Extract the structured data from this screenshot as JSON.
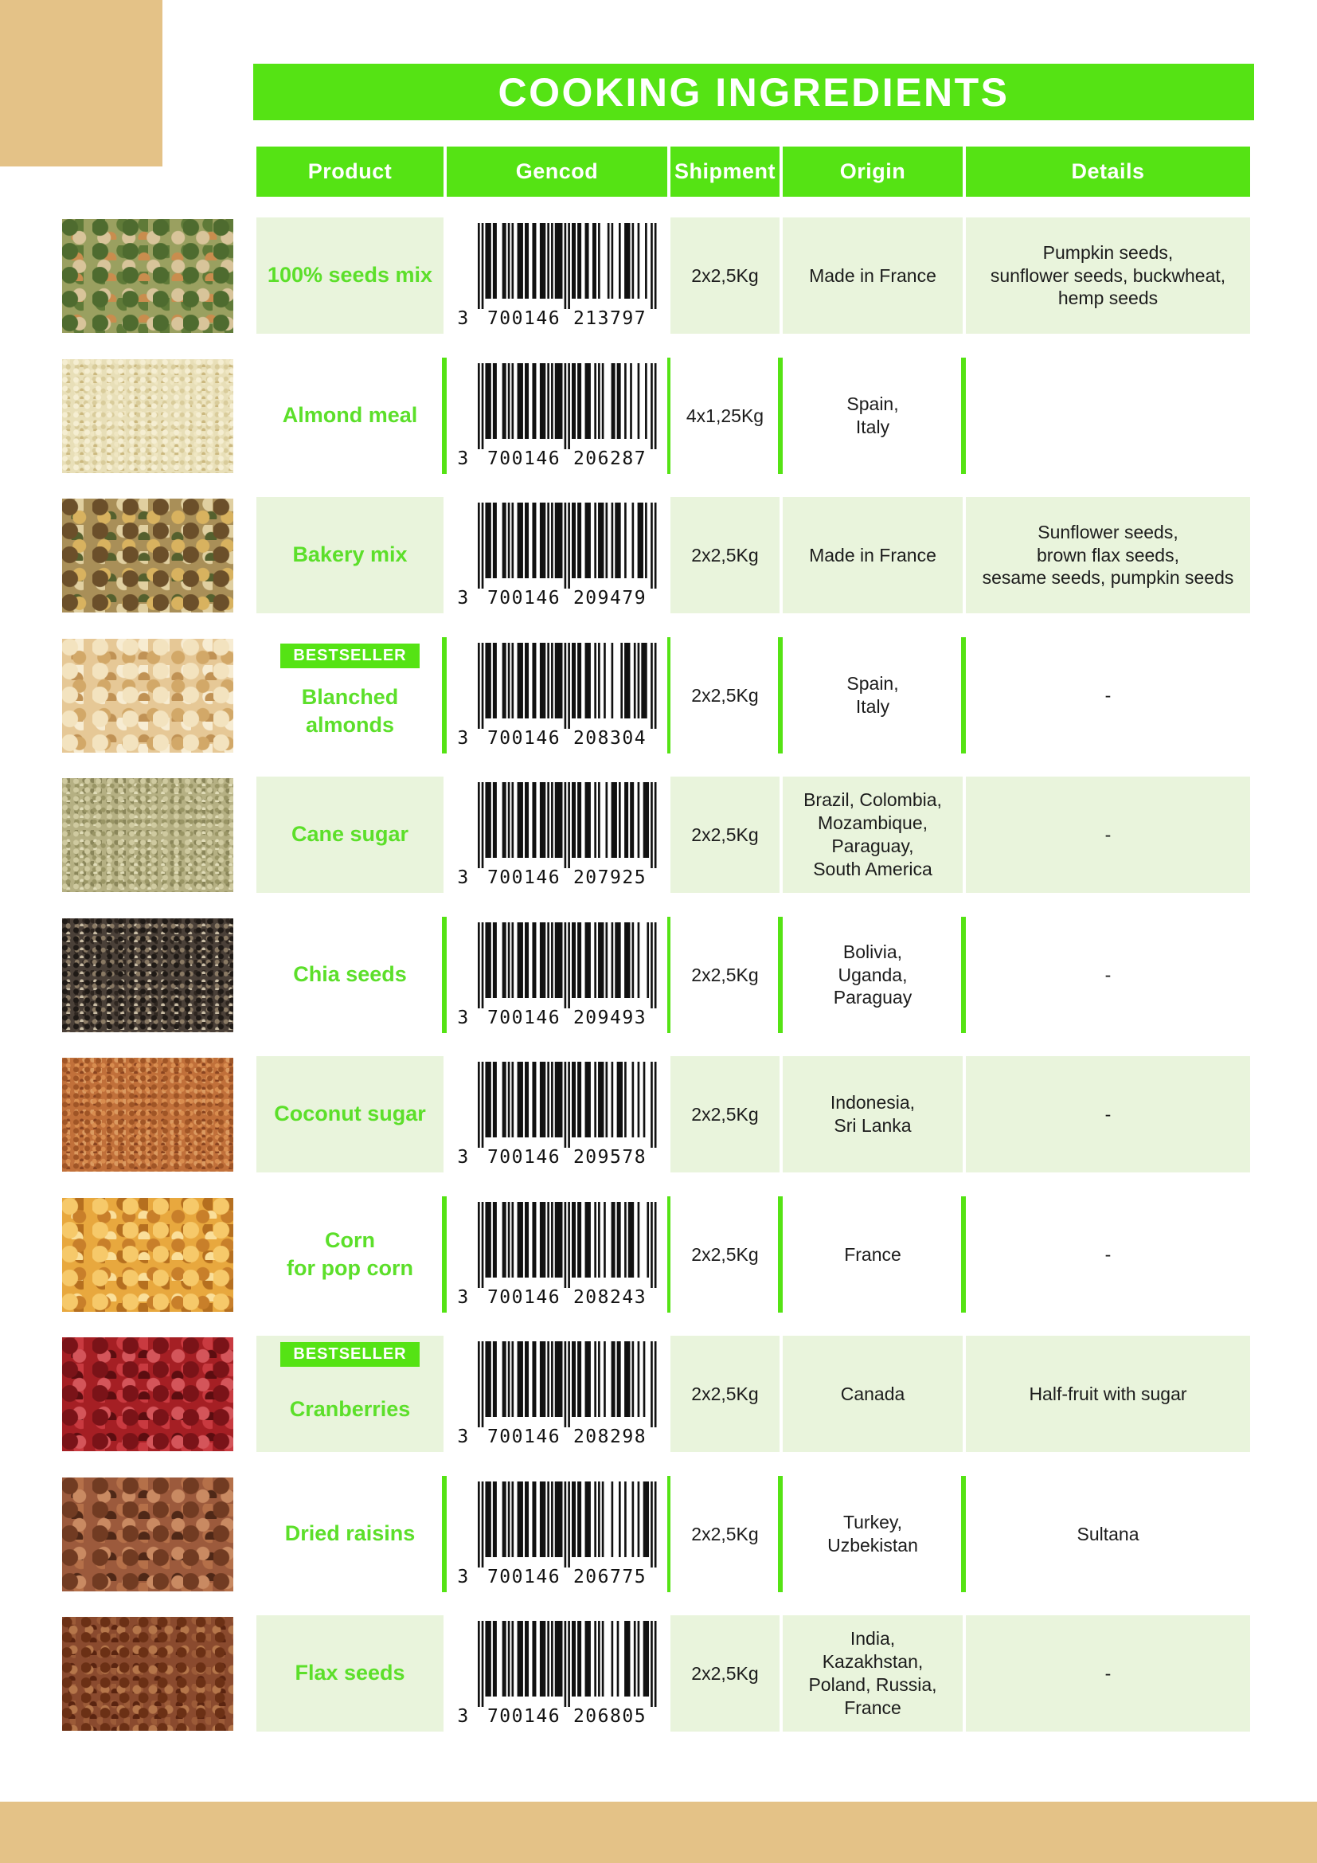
{
  "page": {
    "title": "COOKING INGREDIENTS"
  },
  "table": {
    "headers": [
      "Product",
      "Gencod",
      "Shipment",
      "Origin",
      "Details"
    ]
  },
  "badges": {
    "bestseller": "BESTSELLER"
  },
  "colors": {
    "green": "#55E314",
    "green_text": "#5CDF2A",
    "tint": "#E9F4DC",
    "tan": "#E4C287",
    "ink": "#1C1C1C",
    "header_text": "#FFFFFF"
  },
  "products": [
    {
      "name": "100% seeds mix",
      "gencod": "3700146213797",
      "gencod_display": "3 700146 213797",
      "shipment": "2x2,5Kg",
      "origin": "Made in France",
      "details": "Pumpkin seeds,\nsunflower seeds, buckwheat,\nhemp seeds",
      "bestseller": false,
      "photo": {
        "base": "#9aa060",
        "dots": [
          "#4e6b2f",
          "#d8c49a",
          "#c98d4e",
          "#5f7a38"
        ],
        "grain": "large"
      }
    },
    {
      "name": "Almond meal",
      "gencod": "3700146206287",
      "gencod_display": "3 700146 206287",
      "shipment": "4x1,25Kg",
      "origin": "Spain,\nItaly",
      "details": "",
      "bestseller": false,
      "photo": {
        "base": "#e8dfb8",
        "dots": [
          "#f5eed2",
          "#d9cc9b",
          "#cbb87f",
          "#efe6c2"
        ],
        "grain": "fine"
      }
    },
    {
      "name": "Bakery mix",
      "gencod": "3700146209479",
      "gencod_display": "3 700146 209479",
      "shipment": "2x2,5Kg",
      "origin": "Made in France",
      "details": "Sunflower seeds,\nbrown flax seeds,\nsesame seeds, pumpkin seeds",
      "bestseller": false,
      "photo": {
        "base": "#a98f58",
        "dots": [
          "#6b4f2a",
          "#d8b25f",
          "#55602e",
          "#e0cfa0"
        ],
        "grain": "large"
      }
    },
    {
      "name": "Blanched\nalmonds",
      "gencod": "3700146208304",
      "gencod_display": "3 700146 208304",
      "shipment": "2x2,5Kg",
      "origin": "Spain,\nItaly",
      "details": "-",
      "bestseller": true,
      "photo": {
        "base": "#e6c896",
        "dots": [
          "#f3e3bf",
          "#d2a868",
          "#c09255",
          "#f7ecd2"
        ],
        "grain": "large"
      }
    },
    {
      "name": "Cane sugar",
      "gencod": "3700146207925",
      "gencod_display": "3 700146 207925",
      "shipment": "2x2,5Kg",
      "origin": "Brazil, Colombia,\nMozambique,\nParaguay,\nSouth America",
      "details": "-",
      "bestseller": false,
      "photo": {
        "base": "#b5b083",
        "dots": [
          "#cfcaa0",
          "#999565",
          "#e0dcb8",
          "#8a865a"
        ],
        "grain": "fine"
      }
    },
    {
      "name": "Chia seeds",
      "gencod": "3700146209493",
      "gencod_display": "3 700146 209493",
      "shipment": "2x2,5Kg",
      "origin": "Bolivia,\nUganda,\nParaguay",
      "details": "-",
      "bestseller": false,
      "photo": {
        "base": "#4a4038",
        "dots": [
          "#1f1a16",
          "#8a7a64",
          "#c9bda5",
          "#2e2620"
        ],
        "grain": "fine"
      }
    },
    {
      "name": "Coconut sugar",
      "gencod": "3700146209578",
      "gencod_display": "3 700146 209578",
      "shipment": "2x2,5Kg",
      "origin": "Indonesia,\nSri Lanka",
      "details": "-",
      "bestseller": false,
      "photo": {
        "base": "#c1703a",
        "dots": [
          "#a05526",
          "#d98d4f",
          "#8a4420",
          "#db9a60"
        ],
        "grain": "fine"
      }
    },
    {
      "name": "Corn\nfor pop corn",
      "gencod": "3700146208243",
      "gencod_display": "3 700146 208243",
      "shipment": "2x2,5Kg",
      "origin": "France",
      "details": "-",
      "bestseller": false,
      "photo": {
        "base": "#e8a83e",
        "dots": [
          "#f6c96a",
          "#c87f2a",
          "#fadf9a",
          "#b56f1f"
        ],
        "grain": "large"
      }
    },
    {
      "name": "Cranberries",
      "gencod": "3700146208298",
      "gencod_display": "3 700146 208298",
      "shipment": "2x2,5Kg",
      "origin": "Canada",
      "details": "Half-fruit with sugar",
      "bestseller": true,
      "photo": {
        "base": "#a51f24",
        "dots": [
          "#7a1318",
          "#d4555a",
          "#5c0d10",
          "#c93a40"
        ],
        "grain": "large"
      }
    },
    {
      "name": "Dried raisins",
      "gencod": "3700146206775",
      "gencod_display": "3 700146 206775",
      "shipment": "2x2,5Kg",
      "origin": "Turkey,\nUzbekistan",
      "details": "Sultana",
      "bestseller": false,
      "photo": {
        "base": "#9c5a3c",
        "dots": [
          "#713b22",
          "#c98a62",
          "#4f2817",
          "#b57049"
        ],
        "grain": "large"
      }
    },
    {
      "name": "Flax seeds",
      "gencod": "3700146206805",
      "gencod_display": "3 700146 206805",
      "shipment": "2x2,5Kg",
      "origin": "India,\nKazakhstan,\nPoland, Russia,\nFrance",
      "details": "-",
      "bestseller": false,
      "photo": {
        "base": "#8a4a2e",
        "dots": [
          "#6b3015",
          "#b5764a",
          "#5a2410",
          "#9c5b38"
        ],
        "grain": "medium"
      }
    }
  ]
}
